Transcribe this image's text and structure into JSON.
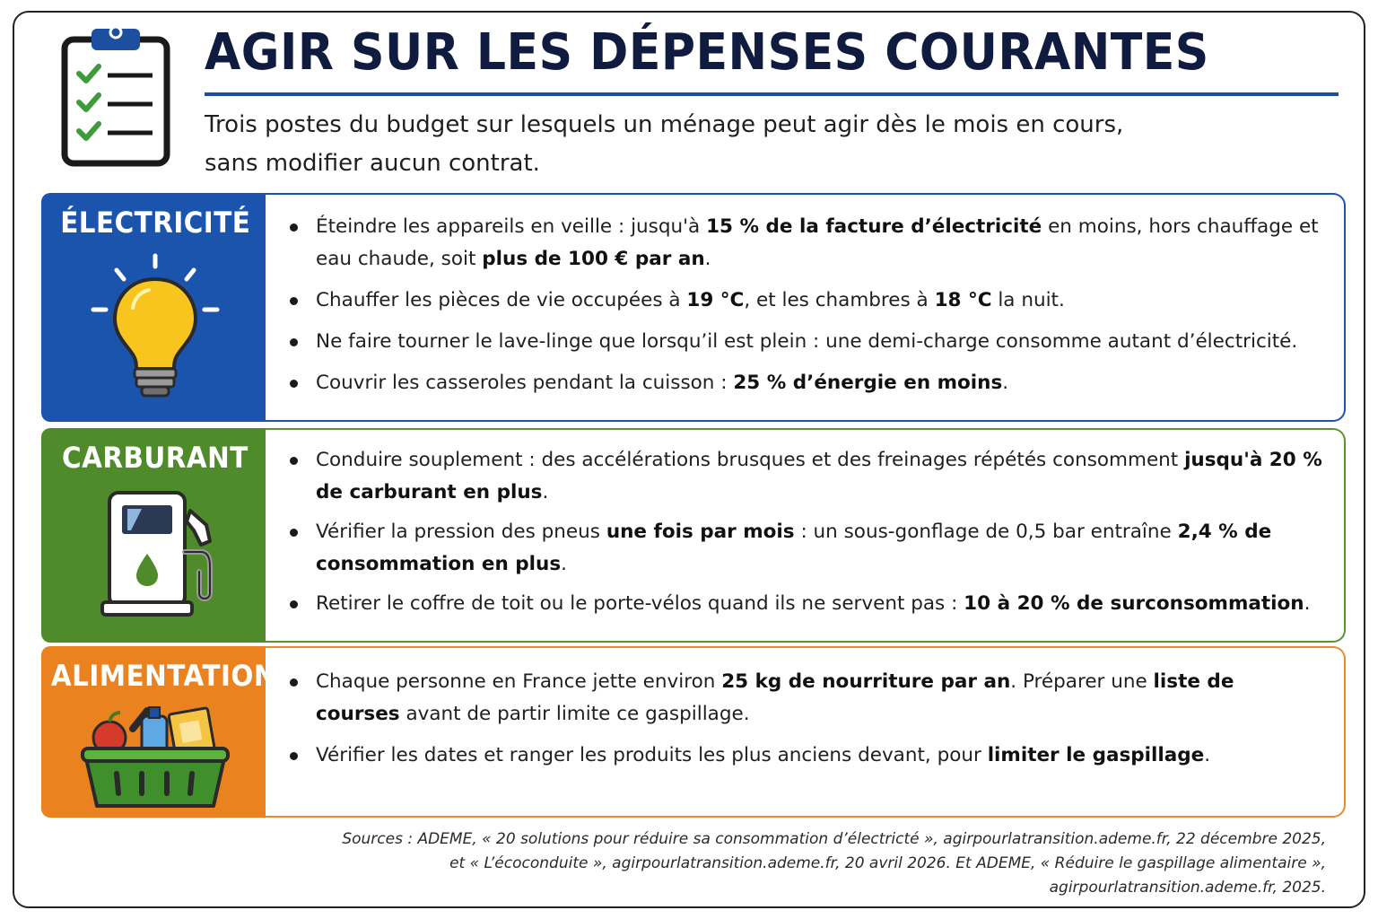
{
  "header": {
    "title": "AGIR SUR LES DÉPENSES COURANTES",
    "subtitle_line1": "Trois postes du budget sur lesquels un ménage peut agir dès le mois en cours,",
    "subtitle_line2": "sans modifier aucun contrat.",
    "icon": "clipboard-checklist-icon"
  },
  "colors": {
    "title": "#0f1c3f",
    "electricite": "#1b54ad",
    "carburant": "#4f8a2b",
    "alimentation": "#ea8220"
  },
  "sections": [
    {
      "label": "ÉLECTRICITÉ",
      "icon": "light-bulb-icon",
      "items": [
        [
          {
            "t": "Éteindre les appareils en veille : jusqu'à ",
            "b": false
          },
          {
            "t": "15 % de la facture d’électricité",
            "b": true
          },
          {
            "t": " en moins, hors chauffage et eau chaude, soit ",
            "b": false
          },
          {
            "t": "plus de 100 € par an",
            "b": true
          },
          {
            "t": ".",
            "b": false
          }
        ],
        [
          {
            "t": "Chauffer les pièces de vie occupées à ",
            "b": false
          },
          {
            "t": "19 °C",
            "b": true
          },
          {
            "t": ", et les chambres à ",
            "b": false
          },
          {
            "t": "18 °C",
            "b": true
          },
          {
            "t": " la nuit.",
            "b": false
          }
        ],
        [
          {
            "t": "Ne faire tourner le lave-linge que lorsqu’il est plein : une demi-charge consomme autant d’électricité.",
            "b": false
          }
        ],
        [
          {
            "t": "Couvrir les casseroles pendant la cuisson : ",
            "b": false
          },
          {
            "t": "25 % d’énergie en moins",
            "b": true
          },
          {
            "t": ".",
            "b": false
          }
        ]
      ]
    },
    {
      "label": "CARBURANT",
      "icon": "fuel-pump-icon",
      "items": [
        [
          {
            "t": "Conduire souplement : des accélérations brusques et des freinages répétés consomment ",
            "b": false
          },
          {
            "t": "jusqu'à 20 % de carburant en plus",
            "b": true
          },
          {
            "t": ".",
            "b": false
          }
        ],
        [
          {
            "t": "Vérifier la pression des pneus ",
            "b": false
          },
          {
            "t": "une fois par mois",
            "b": true
          },
          {
            "t": " : un sous-gonflage de 0,5 bar entraîne ",
            "b": false
          },
          {
            "t": "2,4 % de consommation en plus",
            "b": true
          },
          {
            "t": ".",
            "b": false
          }
        ],
        [
          {
            "t": "Retirer le coffre de toit ou le porte-vélos quand ils ne servent pas : ",
            "b": false
          },
          {
            "t": "10 à 20 % de surconsommation",
            "b": true
          },
          {
            "t": ".",
            "b": false
          }
        ]
      ]
    },
    {
      "label": "ALIMENTATION",
      "icon": "grocery-basket-icon",
      "items": [
        [
          {
            "t": "Chaque personne en France jette environ ",
            "b": false
          },
          {
            "t": "25 kg de nourriture par an",
            "b": true
          },
          {
            "t": ". Préparer une ",
            "b": false
          },
          {
            "t": "liste de courses",
            "b": true
          },
          {
            "t": " avant de partir limite ce gaspillage.",
            "b": false
          }
        ],
        [
          {
            "t": "Vérifier les dates et ranger les produits les plus anciens devant, pour ",
            "b": false
          },
          {
            "t": "limiter le gaspillage",
            "b": true
          },
          {
            "t": ".",
            "b": false
          }
        ]
      ]
    }
  ],
  "sources": {
    "line1": "Sources : ADEME, « 20 solutions pour réduire sa consommation d’électricté », agirpourlatransition.ademe.fr, 22 décembre 2025,",
    "line2": "et « L’écoconduite », agirpourlatransition.ademe.fr, 20 avril 2026. Et ADEME, « Réduire le gaspillage alimentaire »,",
    "line3": "agirpourlatransition.ademe.fr, 2025."
  }
}
